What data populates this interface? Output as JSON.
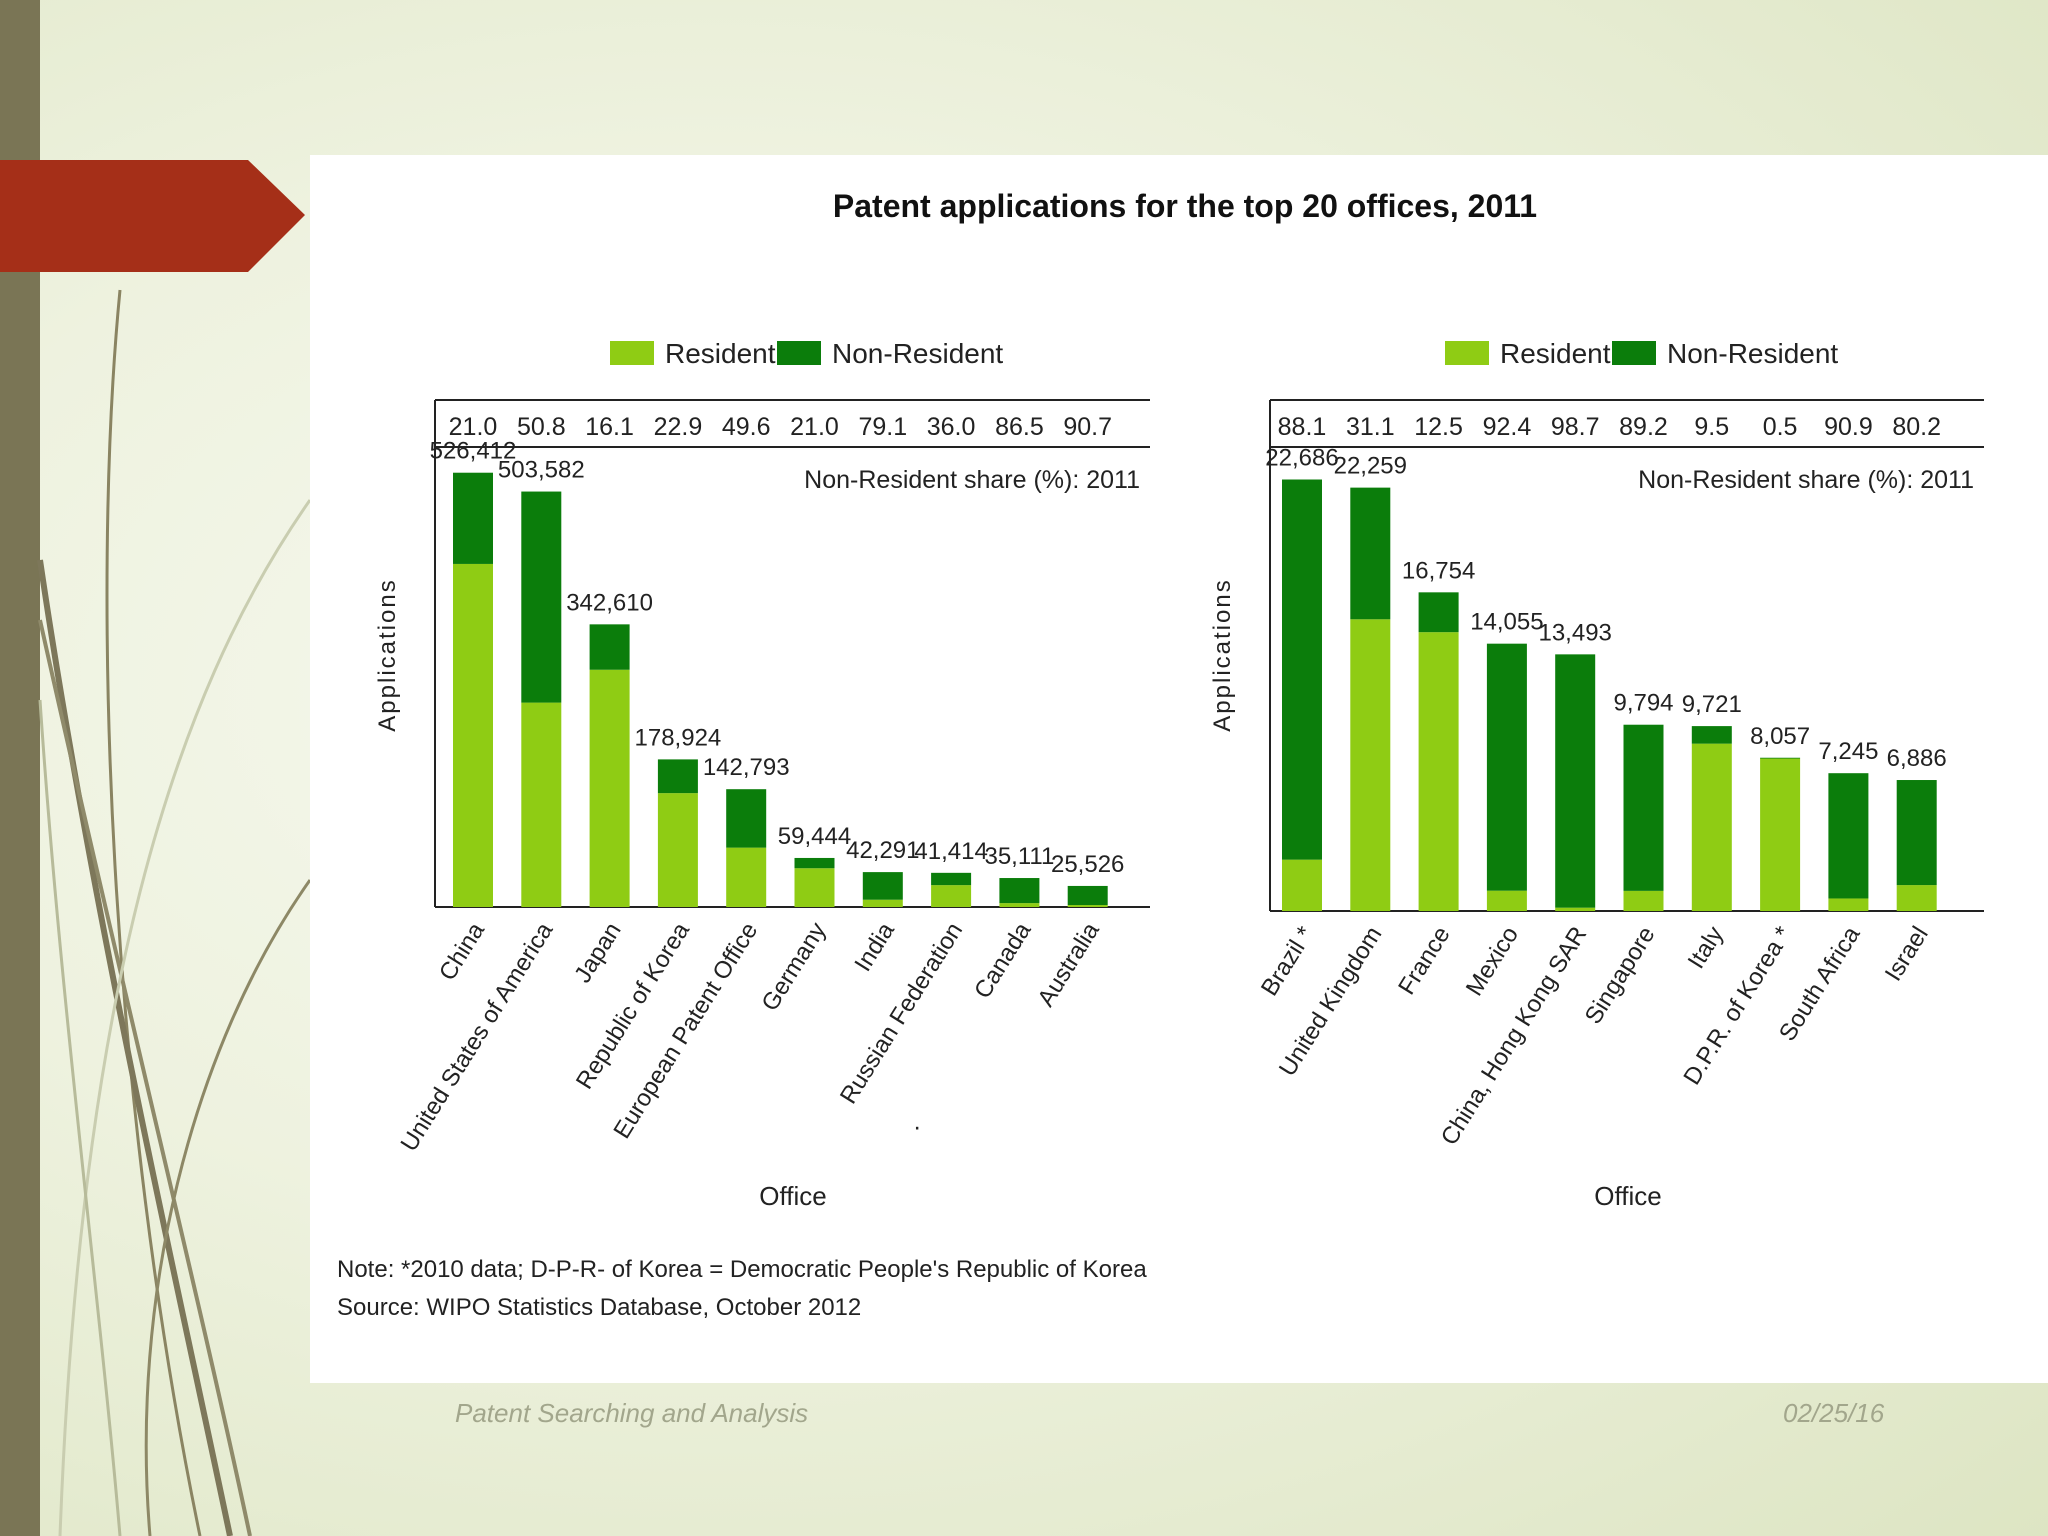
{
  "slide": {
    "footer_left": "Patent Searching and Analysis",
    "footer_right": "02/25/16",
    "colors": {
      "left_band": "#7a7555",
      "arrow": "#a52f18",
      "resident": "#8fcc14",
      "non_resident": "#0b7d0b"
    }
  },
  "figure": {
    "title": "Patent applications for the top 20 offices, 2011",
    "note": "Note: *2010 data; D-P-R- of Korea = Democratic People's Republic of Korea",
    "source": "Source: WIPO Statistics Database, October 2012"
  },
  "chart_data": [
    {
      "type": "bar",
      "stacked": true,
      "title": "Patent applications for the top 20 offices, 2011",
      "xlabel": "Office",
      "ylabel": "Applications",
      "ylim": [
        0,
        560000
      ],
      "legend": [
        "Resident",
        "Non-Resident"
      ],
      "share_label": "Non-Resident share (%): 2011",
      "categories": [
        "China",
        "United States of America",
        "Japan",
        "Republic of Korea",
        "European Patent Office",
        "Germany",
        "India",
        "Russian Federation",
        "Canada",
        "Australia"
      ],
      "totals": [
        526412,
        503582,
        342610,
        178924,
        142793,
        59444,
        42291,
        41414,
        35111,
        25526
      ],
      "total_labels": [
        "526,412",
        "503,582",
        "342,610",
        "178,924",
        "142,793",
        "59,444",
        "42,291",
        "41,414",
        "35,111",
        "25,526"
      ],
      "non_resident_share": [
        "21.0",
        "50.8",
        "16.1",
        "22.9",
        "49.6",
        "21.0",
        "79.1",
        "36.0",
        "86.5",
        "90.7"
      ],
      "series": [
        {
          "name": "Resident",
          "values": [
            415829,
            247750,
            287580,
            138034,
            71968,
            46980,
            8838,
            26519,
            4731,
            2384
          ]
        },
        {
          "name": "Non-Resident",
          "values": [
            110583,
            255832,
            55030,
            40890,
            70825,
            12464,
            33453,
            14895,
            30380,
            23142
          ]
        }
      ]
    },
    {
      "type": "bar",
      "stacked": true,
      "title": "Patent applications for the top 20 offices, 2011",
      "xlabel": "Office",
      "ylabel": "Applications",
      "ylim": [
        0,
        24500
      ],
      "legend": [
        "Resident",
        "Non-Resident"
      ],
      "share_label": "Non-Resident share (%): 2011",
      "categories": [
        "Brazil *",
        "United Kingdom",
        "France",
        "Mexico",
        "China, Hong Kong SAR",
        "Singapore",
        "Italy",
        "D.P.R. of Korea *",
        "South Africa",
        "Israel"
      ],
      "totals": [
        22686,
        22259,
        16754,
        14055,
        13493,
        9794,
        9721,
        8057,
        7245,
        6886
      ],
      "total_labels": [
        "22,686",
        "22,259",
        "16,754",
        "14,055",
        "13,493",
        "9,794",
        "9,721",
        "8,057",
        "7,245",
        "6,886"
      ],
      "non_resident_share": [
        "88.1",
        "31.1",
        "12.5",
        "92.4",
        "98.7",
        "89.2",
        "9.5",
        "0.5",
        "90.9",
        "80.2"
      ],
      "series": [
        {
          "name": "Resident",
          "values": [
            2700,
            15337,
            14660,
            1068,
            175,
            1058,
            8798,
            8017,
            659,
            1363
          ]
        },
        {
          "name": "Non-Resident",
          "values": [
            19986,
            6922,
            2094,
            12987,
            13318,
            8736,
            923,
            40,
            6586,
            5523
          ]
        }
      ]
    }
  ]
}
